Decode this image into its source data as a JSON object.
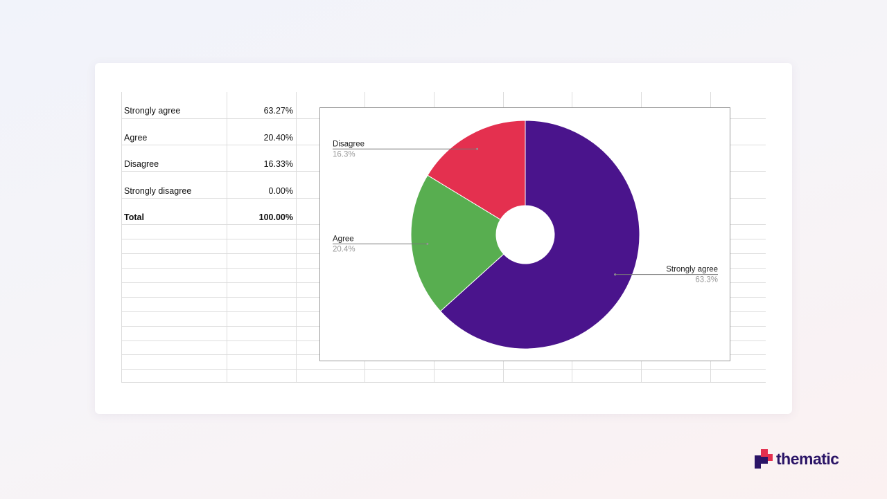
{
  "table": {
    "rows": [
      {
        "label": "Strongly agree",
        "value": "63.27%"
      },
      {
        "label": "Agree",
        "value": "20.40%"
      },
      {
        "label": "Disagree",
        "value": "16.33%"
      },
      {
        "label": "Strongly disagree",
        "value": "0.00%"
      }
    ],
    "total": {
      "label": "Total",
      "value": "100.00%"
    }
  },
  "chart_data": {
    "type": "pie",
    "variant": "donut",
    "title": "",
    "legend": "none",
    "series": [
      {
        "name": "Strongly agree",
        "value": 63.3,
        "label": "63.3%",
        "color": "#4a148c"
      },
      {
        "name": "Agree",
        "value": 20.4,
        "label": "20.4%",
        "color": "#58ae50"
      },
      {
        "name": "Disagree",
        "value": 16.3,
        "label": "16.3%",
        "color": "#e4304f"
      }
    ]
  },
  "brand": {
    "name": "thematic",
    "logo_icon": "thematic-logo-icon",
    "colors": {
      "dark": "#2a1466",
      "accent": "#e4304f"
    }
  }
}
